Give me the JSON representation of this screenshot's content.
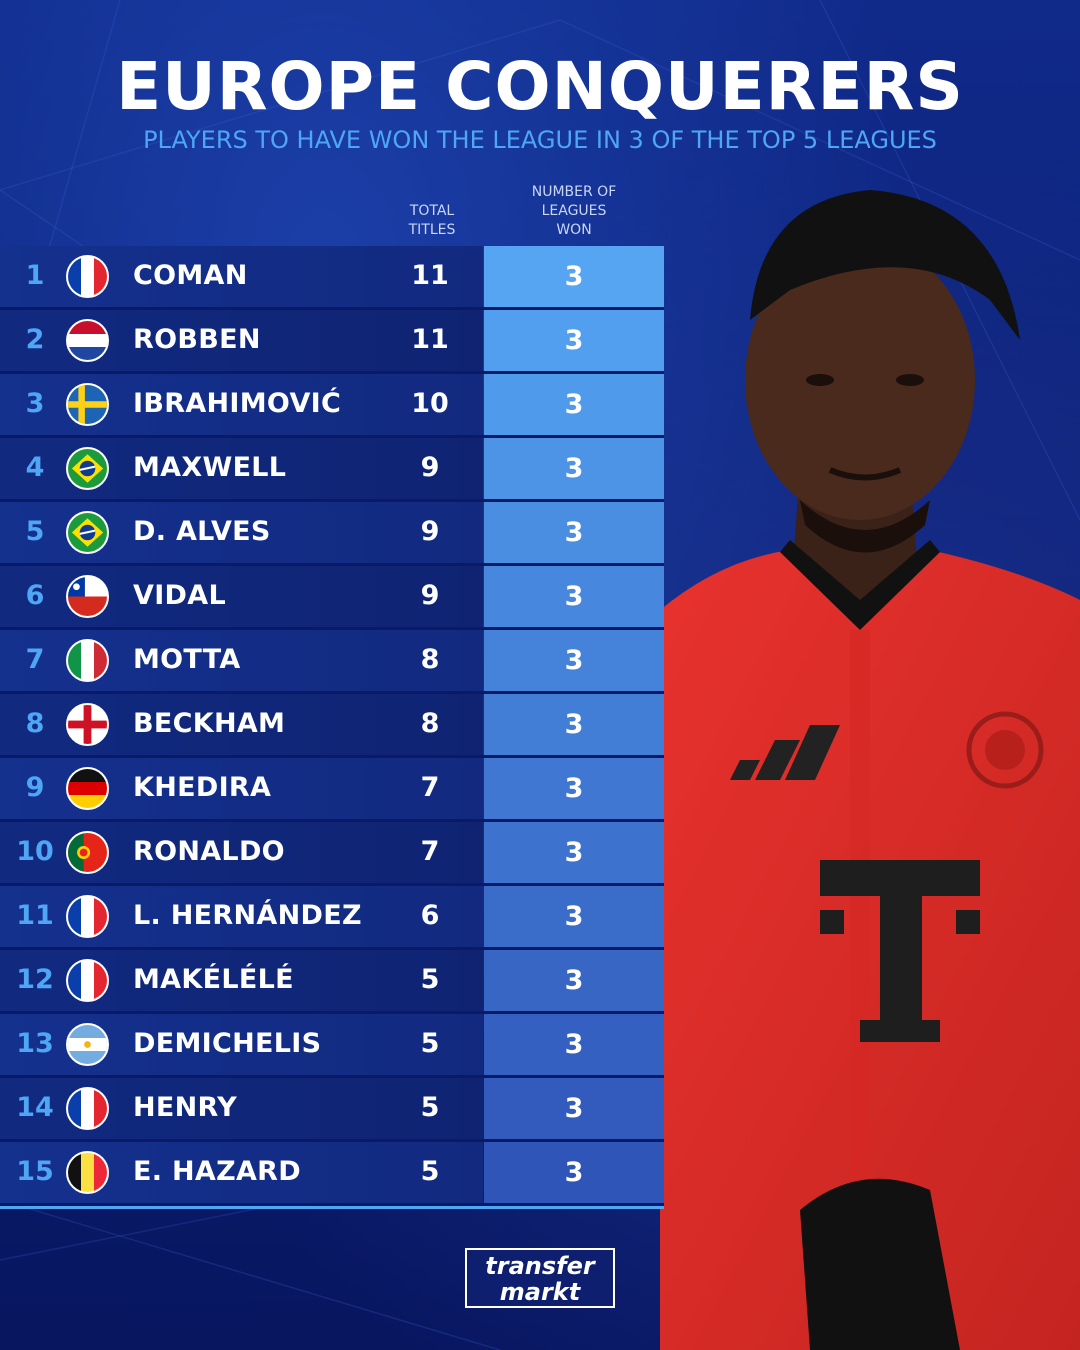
{
  "header": {
    "title": "EUROPE CONQUERERS",
    "subtitle": "PLAYERS TO HAVE WON THE LEAGUE IN 3 OF THE TOP 5 LEAGUES"
  },
  "columns": {
    "total_titles": [
      "TOTAL",
      "TITLES"
    ],
    "leagues_won": [
      "NUMBER OF",
      "LEAGUES",
      "WON"
    ]
  },
  "colors": {
    "accent": "#4ea6f5",
    "leagues_column_top": "#55a5f3",
    "leagues_column_bottom": "#2f55b9"
  },
  "players": [
    {
      "rank": "1",
      "flag": "france",
      "name": "COMAN",
      "titles": "11",
      "leagues": "3"
    },
    {
      "rank": "2",
      "flag": "netherlands",
      "name": "ROBBEN",
      "titles": "11",
      "leagues": "3"
    },
    {
      "rank": "3",
      "flag": "sweden",
      "name": "IBRAHIMOVIĆ",
      "titles": "10",
      "leagues": "3"
    },
    {
      "rank": "4",
      "flag": "brazil",
      "name": "MAXWELL",
      "titles": "9",
      "leagues": "3"
    },
    {
      "rank": "5",
      "flag": "brazil",
      "name": "D. ALVES",
      "titles": "9",
      "leagues": "3"
    },
    {
      "rank": "6",
      "flag": "chile",
      "name": "VIDAL",
      "titles": "9",
      "leagues": "3"
    },
    {
      "rank": "7",
      "flag": "italy",
      "name": "MOTTA",
      "titles": "8",
      "leagues": "3"
    },
    {
      "rank": "8",
      "flag": "england",
      "name": "BECKHAM",
      "titles": "8",
      "leagues": "3"
    },
    {
      "rank": "9",
      "flag": "germany",
      "name": "KHEDIRA",
      "titles": "7",
      "leagues": "3"
    },
    {
      "rank": "10",
      "flag": "portugal",
      "name": "RONALDO",
      "titles": "7",
      "leagues": "3"
    },
    {
      "rank": "11",
      "flag": "france",
      "name": "L. HERNÁNDEZ",
      "titles": "6",
      "leagues": "3"
    },
    {
      "rank": "12",
      "flag": "france",
      "name": "MAKÉLÉLÉ",
      "titles": "5",
      "leagues": "3"
    },
    {
      "rank": "13",
      "flag": "argentina",
      "name": "DEMICHELIS",
      "titles": "5",
      "leagues": "3"
    },
    {
      "rank": "14",
      "flag": "france",
      "name": "HENRY",
      "titles": "5",
      "leagues": "3"
    },
    {
      "rank": "15",
      "flag": "belgium",
      "name": "E. HAZARD",
      "titles": "5",
      "leagues": "3"
    }
  ],
  "logo": {
    "line1": "transfer",
    "line2": "markt"
  },
  "photo": {
    "subject": "player-photo",
    "icon": "player-silhouette-icon"
  }
}
